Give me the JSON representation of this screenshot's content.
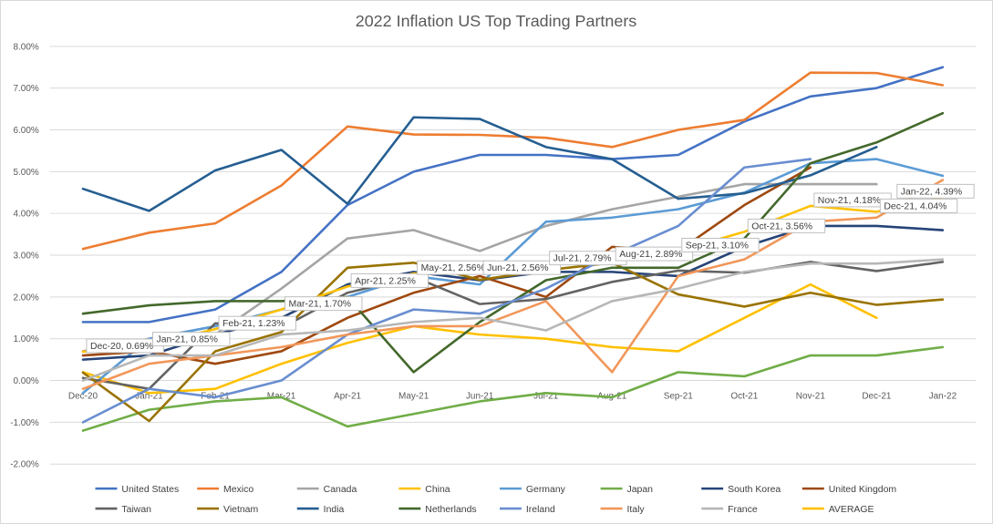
{
  "chart_data": {
    "type": "line",
    "title": "2022 Inflation US Top Trading Partners",
    "xlabel": "",
    "ylabel": "",
    "categories": [
      "Dec-20",
      "Jan-21",
      "Feb-21",
      "Mar-21",
      "Apr-21",
      "May-21",
      "Jun-21",
      "Jul-21",
      "Aug-21",
      "Sep-21",
      "Oct-21",
      "Nov-21",
      "Dec-21",
      "Jan-22"
    ],
    "ylim": [
      -2.0,
      8.0
    ],
    "ytick_step": 1.0,
    "ytick_labels": [
      "-2.00%",
      "-1.00%",
      "0.00%",
      "1.00%",
      "2.00%",
      "3.00%",
      "4.00%",
      "5.00%",
      "6.00%",
      "7.00%",
      "8.00%"
    ],
    "grid": true,
    "legend": "bottom",
    "series": [
      {
        "name": "United States",
        "color": "#4472C4",
        "values": [
          1.4,
          1.4,
          1.7,
          2.6,
          4.2,
          5.0,
          5.4,
          5.4,
          5.3,
          5.4,
          6.2,
          6.8,
          7.0,
          7.5
        ]
      },
      {
        "name": "Mexico",
        "color": "#ED7D31",
        "values": [
          3.15,
          3.54,
          3.76,
          4.67,
          6.08,
          5.89,
          5.88,
          5.81,
          5.59,
          6.0,
          6.24,
          7.37,
          7.36,
          7.07
        ]
      },
      {
        "name": "Canada",
        "color": "#A5A5A5",
        "values": [
          0.7,
          1.0,
          1.1,
          2.2,
          3.4,
          3.6,
          3.1,
          3.7,
          4.1,
          4.4,
          4.7,
          4.7,
          4.7,
          null
        ]
      },
      {
        "name": "China",
        "color": "#FFC000",
        "values": [
          0.2,
          -0.3,
          -0.2,
          0.4,
          0.9,
          1.3,
          1.1,
          1.0,
          0.8,
          0.7,
          1.5,
          2.3,
          1.5,
          null
        ]
      },
      {
        "name": "Germany",
        "color": "#5B9BD5",
        "values": [
          -0.3,
          1.0,
          1.3,
          1.7,
          2.0,
          2.5,
          2.3,
          3.8,
          3.9,
          4.1,
          4.5,
          5.2,
          5.3,
          4.9
        ]
      },
      {
        "name": "Japan",
        "color": "#70AD47",
        "values": [
          -1.2,
          -0.7,
          -0.5,
          -0.4,
          -1.1,
          -0.8,
          -0.5,
          -0.3,
          -0.4,
          0.2,
          0.1,
          0.6,
          0.6,
          0.8
        ]
      },
      {
        "name": "South Korea",
        "color": "#264478",
        "values": [
          0.5,
          0.6,
          1.1,
          1.5,
          2.3,
          2.6,
          2.4,
          2.6,
          2.6,
          2.5,
          3.2,
          3.7,
          3.7,
          3.6
        ]
      },
      {
        "name": "United Kingdom",
        "color": "#9E480E",
        "values": [
          0.6,
          0.7,
          0.4,
          0.7,
          1.5,
          2.1,
          2.5,
          2.0,
          3.2,
          3.1,
          4.2,
          5.1,
          null,
          null
        ]
      },
      {
        "name": "Taiwan",
        "color": "#636363",
        "values": [
          0.06,
          -0.2,
          1.37,
          1.26,
          2.1,
          2.48,
          1.83,
          1.95,
          2.36,
          2.63,
          2.58,
          2.84,
          2.62,
          2.84
        ]
      },
      {
        "name": "Vietnam",
        "color": "#997300",
        "values": [
          0.19,
          -0.97,
          0.7,
          1.16,
          2.7,
          2.82,
          2.41,
          2.64,
          2.82,
          2.06,
          1.77,
          2.1,
          1.81,
          1.94
        ]
      },
      {
        "name": "India",
        "color": "#255E91",
        "values": [
          4.59,
          4.06,
          5.03,
          5.52,
          4.23,
          6.3,
          6.26,
          5.59,
          5.3,
          4.35,
          4.48,
          4.91,
          5.59,
          null
        ]
      },
      {
        "name": "Netherlands",
        "color": "#43682B",
        "values": [
          1.6,
          1.8,
          1.9,
          1.9,
          2.0,
          0.2,
          1.4,
          2.4,
          2.7,
          2.7,
          3.4,
          5.2,
          5.7,
          6.4
        ]
      },
      {
        "name": "Ireland",
        "color": "#698ED0",
        "values": [
          -1.0,
          -0.2,
          -0.4,
          0.0,
          1.1,
          1.7,
          1.6,
          2.2,
          3.0,
          3.7,
          5.1,
          5.3,
          null,
          null
        ]
      },
      {
        "name": "Italy",
        "color": "#F1975A",
        "values": [
          -0.2,
          0.4,
          0.6,
          0.8,
          1.1,
          1.3,
          1.3,
          1.9,
          0.2,
          2.5,
          2.9,
          3.8,
          3.9,
          4.8
        ]
      },
      {
        "name": "France",
        "color": "#B7B7B7",
        "values": [
          0.0,
          0.6,
          0.6,
          1.1,
          1.2,
          1.4,
          1.5,
          1.2,
          1.9,
          2.2,
          2.6,
          2.8,
          2.8,
          2.9
        ]
      },
      {
        "name": "AVERAGE",
        "color": "#FFC000",
        "values": [
          0.69,
          0.85,
          1.23,
          1.7,
          2.25,
          2.56,
          2.56,
          2.79,
          2.89,
          3.1,
          3.56,
          4.18,
          4.04,
          4.39
        ]
      }
    ],
    "data_labels": [
      {
        "series": "AVERAGE",
        "index": 0,
        "text": "Dec-20, 0.69%"
      },
      {
        "series": "AVERAGE",
        "index": 1,
        "text": "Jan-21, 0.85%"
      },
      {
        "series": "AVERAGE",
        "index": 2,
        "text": "Feb-21, 1.23%"
      },
      {
        "series": "AVERAGE",
        "index": 3,
        "text": "Mar-21, 1.70%"
      },
      {
        "series": "AVERAGE",
        "index": 4,
        "text": "Apr-21, 2.25%"
      },
      {
        "series": "AVERAGE",
        "index": 5,
        "text": "May-21, 2.56%"
      },
      {
        "series": "AVERAGE",
        "index": 6,
        "text": "Jun-21, 2.56%"
      },
      {
        "series": "AVERAGE",
        "index": 7,
        "text": "Jul-21, 2.79%"
      },
      {
        "series": "AVERAGE",
        "index": 8,
        "text": "Aug-21, 2.89%"
      },
      {
        "series": "AVERAGE",
        "index": 9,
        "text": "Sep-21, 3.10%"
      },
      {
        "series": "AVERAGE",
        "index": 10,
        "text": "Oct-21, 3.56%"
      },
      {
        "series": "AVERAGE",
        "index": 11,
        "text": "Nov-21, 4.18%"
      },
      {
        "series": "AVERAGE",
        "index": 12,
        "text": "Dec-21, 4.04%"
      },
      {
        "series": "AVERAGE",
        "index": 13,
        "text": "Jan-22, 4.39%"
      }
    ]
  }
}
